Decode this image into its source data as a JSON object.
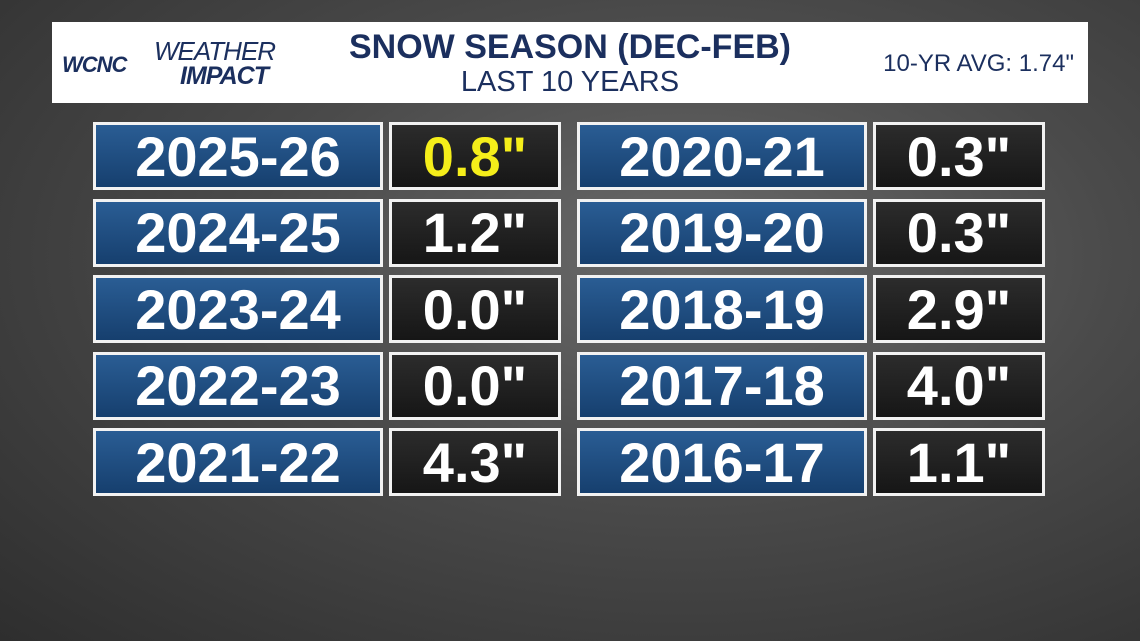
{
  "header": {
    "logo": {
      "station": "WCNC",
      "brand_top": "WEATHER",
      "brand_bottom": "IMPACT"
    },
    "title": "SNOW SEASON (DEC-FEB)",
    "subtitle": "LAST 10 YEARS",
    "average": "10-YR AVG: 1.74\""
  },
  "table": {
    "columns": [
      [
        {
          "season": "2025-26",
          "snowfall": "0.8\"",
          "highlight": true
        },
        {
          "season": "2024-25",
          "snowfall": "1.2\""
        },
        {
          "season": "2023-24",
          "snowfall": "0.0\""
        },
        {
          "season": "2022-23",
          "snowfall": "0.0\""
        },
        {
          "season": "2021-22",
          "snowfall": "4.3\""
        }
      ],
      [
        {
          "season": "2020-21",
          "snowfall": "0.3\""
        },
        {
          "season": "2019-20",
          "snowfall": "0.3\""
        },
        {
          "season": "2018-19",
          "snowfall": "2.9\""
        },
        {
          "season": "2017-18",
          "snowfall": "4.0\""
        },
        {
          "season": "2016-17",
          "snowfall": "1.1\""
        }
      ]
    ]
  }
}
